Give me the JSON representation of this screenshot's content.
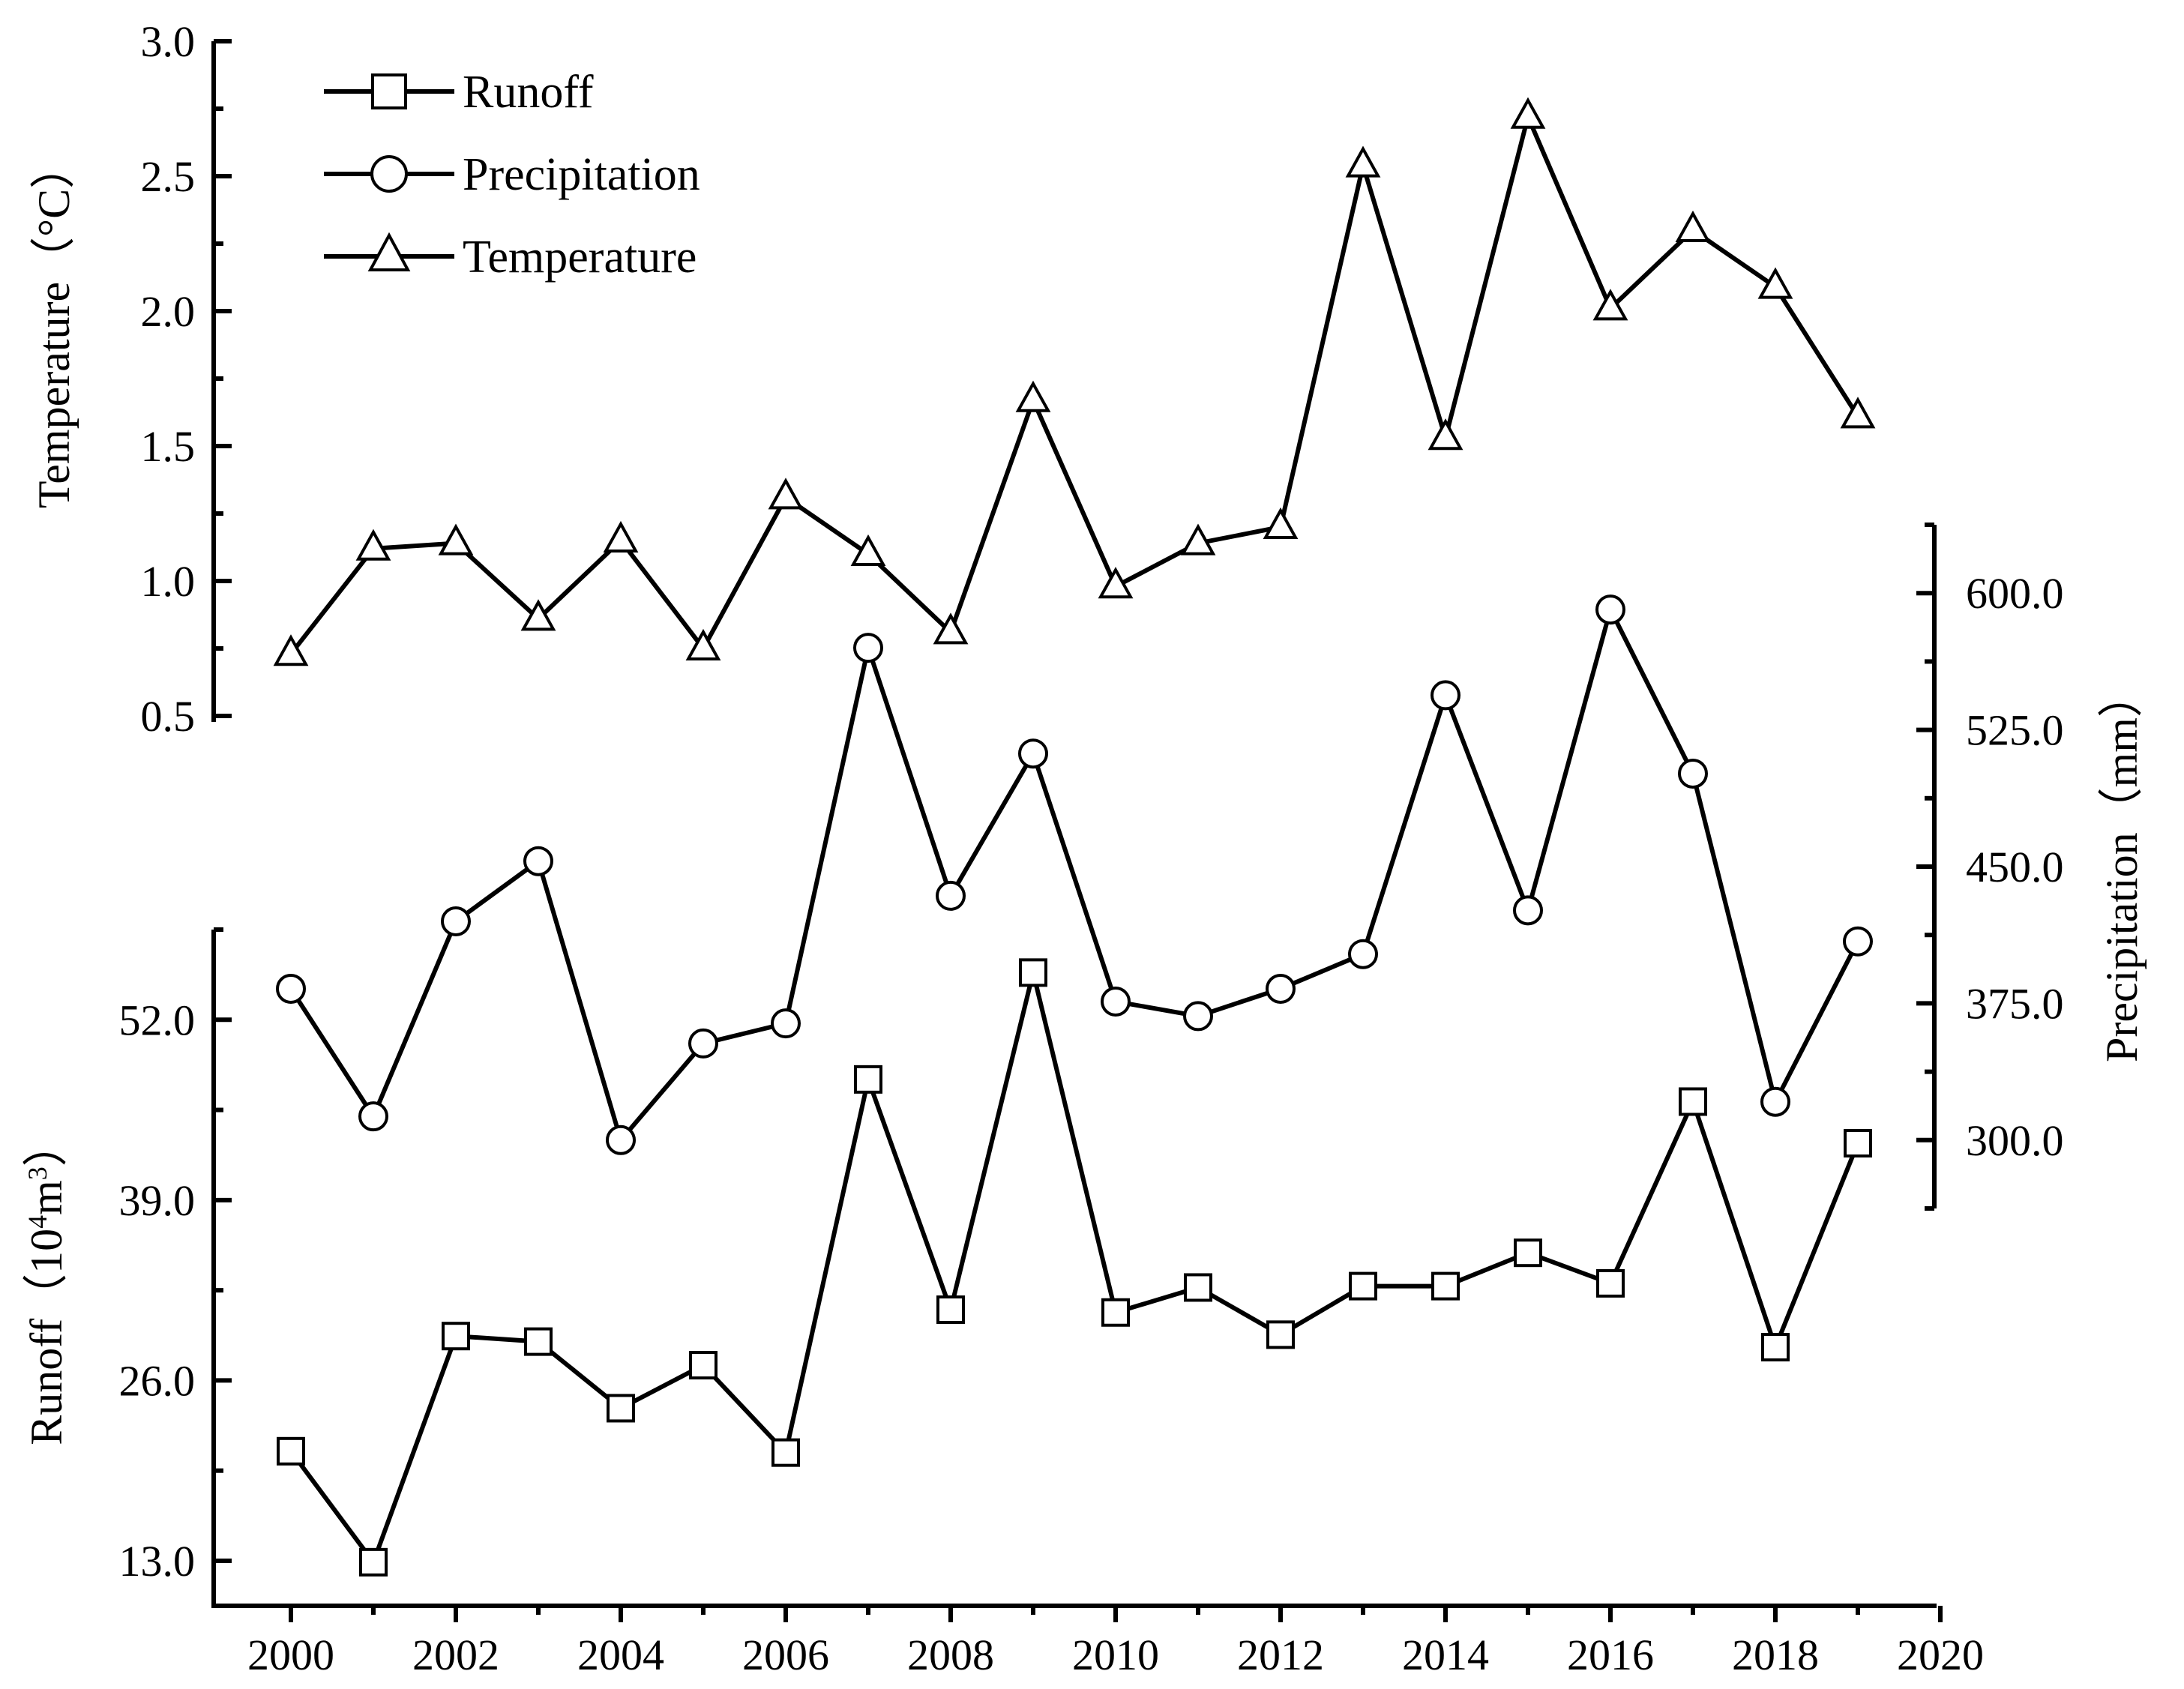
{
  "chart_data": {
    "type": "line",
    "x": [
      2000,
      2001,
      2002,
      2003,
      2004,
      2005,
      2006,
      2007,
      2008,
      2009,
      2010,
      2011,
      2012,
      2013,
      2014,
      2015,
      2016,
      2017,
      2018,
      2019
    ],
    "x_axis": {
      "range": [
        2000,
        2020
      ],
      "ticks": [
        2000,
        2002,
        2004,
        2006,
        2008,
        2010,
        2012,
        2014,
        2016,
        2018,
        2020
      ],
      "tick_labels": [
        "2000",
        "2002",
        "2004",
        "2006",
        "2008",
        "2010",
        "2012",
        "2014",
        "2016",
        "2018",
        "2020"
      ]
    },
    "y_axes": {
      "temperature": {
        "label_main": "Temperature",
        "label_unit": "（°C）",
        "range": [
          0.5,
          3.0
        ],
        "ticks": [
          0.5,
          1.0,
          1.5,
          2.0,
          2.5,
          3.0
        ],
        "tick_labels": [
          "0.5",
          "1.0",
          "1.5",
          "2.0",
          "2.5",
          "3.0"
        ]
      },
      "precipitation": {
        "label_main": "Precipitation",
        "label_unit": "（mm）",
        "range": [
          262.5,
          637.5
        ],
        "ticks": [
          300,
          375,
          450,
          525,
          600
        ],
        "tick_labels": [
          "300.0",
          "375.0",
          "450.0",
          "525.0",
          "600.0"
        ]
      },
      "runoff": {
        "label_main": "Runoff",
        "label_paren_open": "（",
        "label_unit_base": "10",
        "label_unit_exp1": "4",
        "label_unit_m": "m",
        "label_unit_exp2": "3",
        "label_paren_close": "）",
        "range": [
          13.0,
          58.5
        ],
        "ticks": [
          13,
          26,
          39,
          52
        ],
        "tick_labels": [
          "13.0",
          "26.0",
          "39.0",
          "52.0"
        ]
      }
    },
    "series": [
      {
        "name": "Runoff",
        "axis": "runoff",
        "marker": "square",
        "values": [
          20.9,
          12.9,
          29.2,
          28.8,
          24.0,
          27.1,
          20.8,
          47.7,
          31.1,
          55.4,
          30.9,
          32.7,
          29.3,
          32.8,
          32.8,
          35.2,
          33.0,
          46.1,
          28.4,
          43.1
        ]
      },
      {
        "name": "Precipitation",
        "axis": "precipitation",
        "marker": "circle",
        "values": [
          383,
          313,
          420,
          453,
          300,
          353,
          364,
          570,
          434,
          512,
          376,
          368,
          383,
          402,
          544,
          426,
          591,
          501,
          321,
          409
        ]
      },
      {
        "name": "Temperature",
        "axis": "temperature",
        "marker": "triangle",
        "values": [
          0.73,
          1.12,
          1.14,
          0.86,
          1.15,
          0.75,
          1.31,
          1.1,
          0.81,
          1.67,
          0.98,
          1.14,
          1.2,
          2.54,
          1.53,
          2.72,
          2.01,
          2.3,
          2.09,
          1.61
        ]
      }
    ],
    "legend": {
      "position": "top-left",
      "entries": [
        "Runoff",
        "Precipitation",
        "Temperature"
      ]
    },
    "grid": false
  }
}
